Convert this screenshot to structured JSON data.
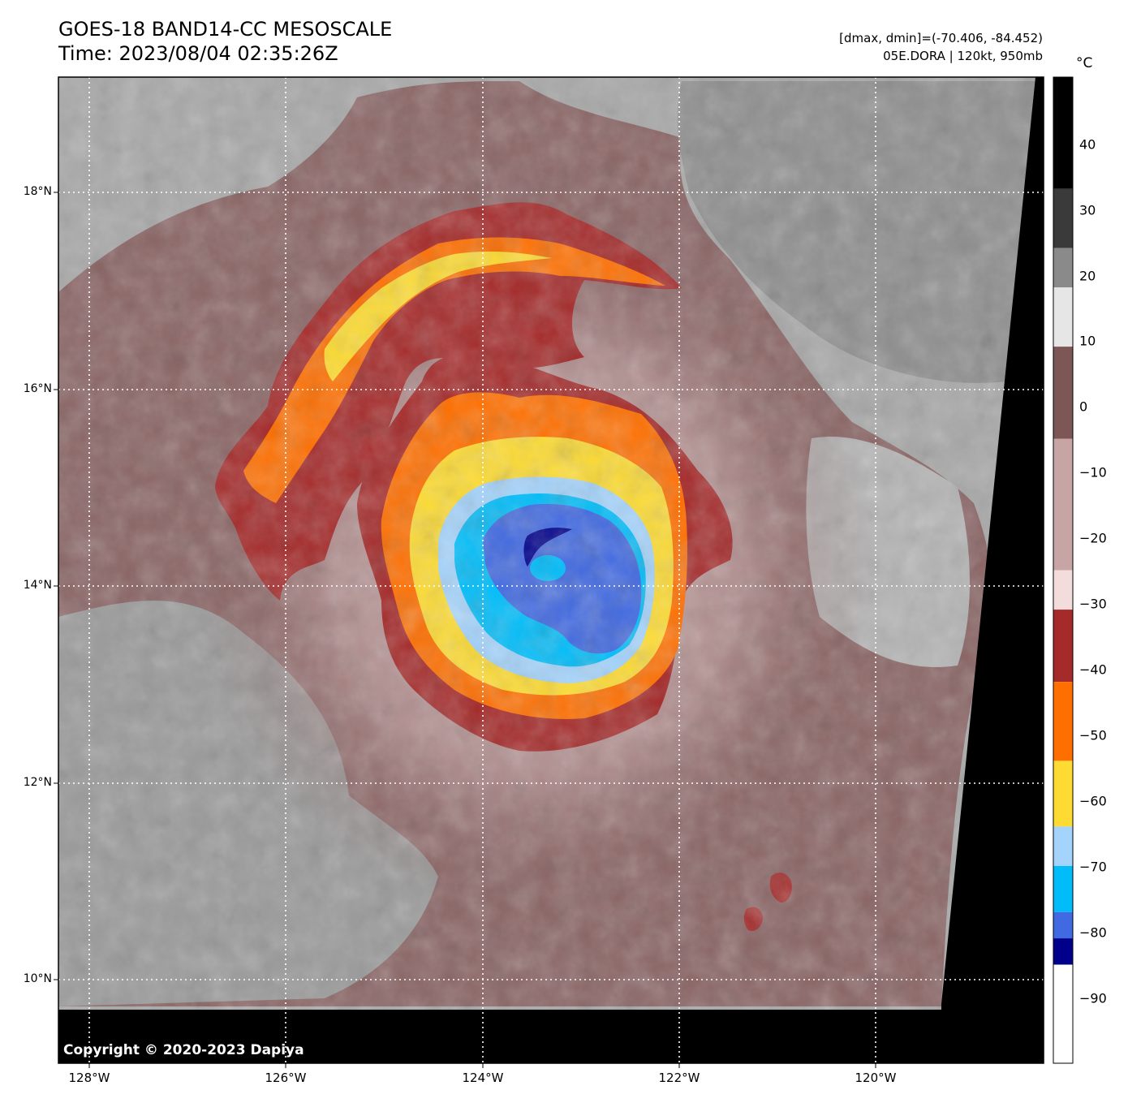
{
  "header": {
    "title_line1": "GOES-18 BAND14-CC MESOSCALE",
    "title_line2": "Time: 2023/08/04 02:35:26Z",
    "info_line1": "[dmax, dmin]=(-70.406, -84.452)",
    "info_line2": "05E.DORA | 120kt, 950mb"
  },
  "map": {
    "lat_labels": [
      "18°N",
      "16°N",
      "14°N",
      "12°N",
      "10°N"
    ],
    "lon_labels": [
      "128°W",
      "126°W",
      "124°W",
      "122°W",
      "120°W"
    ],
    "copyright": "Copyright © 2020-2023 Dapiya"
  },
  "colorbar": {
    "unit": "°C",
    "tick_labels": [
      "40",
      "30",
      "20",
      "10",
      "0",
      "−10",
      "−20",
      "−30",
      "−40",
      "−50",
      "−60",
      "−70",
      "−80",
      "−90"
    ],
    "range": [
      -100,
      50
    ],
    "bands": [
      {
        "from": 50,
        "to": 33,
        "color": "#000000"
      },
      {
        "from": 33,
        "to": 24,
        "color": "#3a3a3a"
      },
      {
        "from": 24,
        "to": 18,
        "color": "#8a8a8a"
      },
      {
        "from": 18,
        "to": 9,
        "color": "#e6e6e6"
      },
      {
        "from": 9,
        "to": -5,
        "color": "#7d5656"
      },
      {
        "from": -5,
        "to": -25,
        "color": "#c7a5a5"
      },
      {
        "from": -25,
        "to": -31,
        "color": "#f3dcdc"
      },
      {
        "from": -31,
        "to": -42,
        "color": "#a52a2a"
      },
      {
        "from": -42,
        "to": -54,
        "color": "#ff6f00"
      },
      {
        "from": -54,
        "to": -64,
        "color": "#fddb32"
      },
      {
        "from": -64,
        "to": -70,
        "color": "#a4d3fb"
      },
      {
        "from": -70,
        "to": -77,
        "color": "#00bdfa"
      },
      {
        "from": -77,
        "to": -81,
        "color": "#4169e1"
      },
      {
        "from": -81,
        "to": -85,
        "color": "#00008b"
      },
      {
        "from": -85,
        "to": -100,
        "color": "#ffffff"
      }
    ]
  },
  "colors": {
    "cloud_warm": "#7d5656",
    "cloud_cold_gray": "#a8a8a8",
    "ring_dark_red": "#a52a2a",
    "ring_orange": "#ff6f00",
    "ring_yellow": "#fddb32",
    "ring_light_blue": "#a4d3fb",
    "ring_cyan": "#00bdfa",
    "ring_blue": "#4169e1",
    "ring_navy": "#00008b"
  }
}
